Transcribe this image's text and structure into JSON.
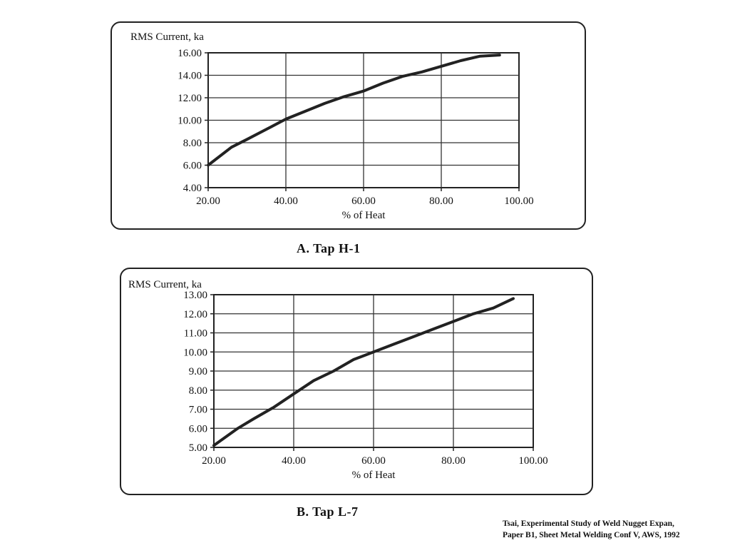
{
  "chart_data": [
    {
      "type": "line",
      "ylabel": "RMS Current, ka",
      "xlabel": "% of Heat",
      "caption": "A. Tap H-1",
      "xlim": [
        20,
        100
      ],
      "ylim": [
        4,
        16
      ],
      "xticks": [
        "20.00",
        "40.00",
        "60.00",
        "80.00",
        "100.00"
      ],
      "yticks": [
        "4.00",
        "6.00",
        "8.00",
        "10.00",
        "12.00",
        "14.00",
        "16.00"
      ],
      "grid": true,
      "series": [
        {
          "x": [
            20,
            26,
            30,
            35,
            40,
            45,
            50,
            55,
            60,
            65,
            70,
            75,
            80,
            85,
            90,
            95
          ],
          "y": [
            6.0,
            7.6,
            8.3,
            9.2,
            10.1,
            10.8,
            11.5,
            12.1,
            12.6,
            13.3,
            13.9,
            14.3,
            14.8,
            15.3,
            15.7,
            15.8
          ]
        }
      ]
    },
    {
      "type": "line",
      "ylabel": "RMS Current, ka",
      "xlabel": "% of Heat",
      "caption": "B. Tap L-7",
      "xlim": [
        20,
        100
      ],
      "ylim": [
        5,
        13
      ],
      "xticks": [
        "20.00",
        "40.00",
        "60.00",
        "80.00",
        "100.00"
      ],
      "yticks": [
        "5.00",
        "6.00",
        "7.00",
        "8.00",
        "9.00",
        "10.00",
        "11.00",
        "12.00",
        "13.00"
      ],
      "grid": true,
      "series": [
        {
          "x": [
            20,
            26,
            30,
            35,
            40,
            45,
            50,
            55,
            60,
            65,
            70,
            75,
            80,
            85,
            90,
            95
          ],
          "y": [
            5.1,
            6.0,
            6.5,
            7.1,
            7.8,
            8.5,
            9.0,
            9.6,
            10.0,
            10.4,
            10.8,
            11.2,
            11.6,
            12.0,
            12.3,
            12.8
          ]
        }
      ]
    }
  ],
  "citation": {
    "line1": "Tsai, Experimental Study of Weld Nugget Expan,",
    "line2": "Paper B1, Sheet Metal Welding Conf V, AWS, 1992"
  }
}
